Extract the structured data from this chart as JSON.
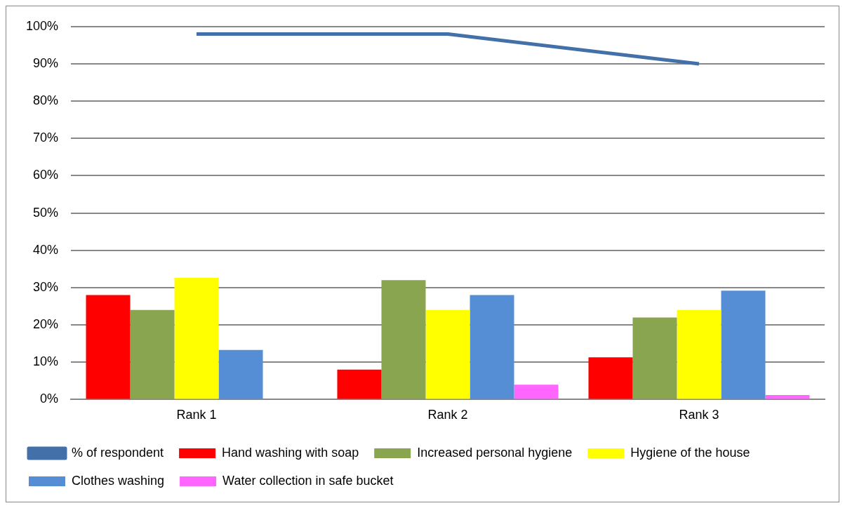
{
  "chart_data": {
    "type": "bar",
    "categories": [
      "Rank 1",
      "Rank 2",
      "Rank 3"
    ],
    "series": [
      {
        "name": "Hand washing with soap",
        "color": "#ff0000",
        "values": [
          28,
          8,
          11.3
        ]
      },
      {
        "name": "Increased personal hygiene",
        "color": "#8aa54f",
        "values": [
          24,
          32,
          22
        ]
      },
      {
        "name": "Hygiene of the house",
        "color": "#ffff00",
        "values": [
          32.6,
          24,
          24
        ]
      },
      {
        "name": "Clothes washing",
        "color": "#558ed5",
        "values": [
          13.3,
          28,
          29.2
        ]
      },
      {
        "name": "Water collection in safe bucket",
        "color": "#ff66ff",
        "values": [
          null,
          4,
          1.2
        ]
      },
      {
        "name": "% of respondent",
        "type": "line",
        "color": "#4470aa",
        "values": [
          98,
          98,
          90
        ]
      }
    ],
    "ylim": [
      0,
      100
    ],
    "yticks": [
      {
        "value": 0,
        "label": "0%"
      },
      {
        "value": 10,
        "label": "10%"
      },
      {
        "value": 20,
        "label": "20%"
      },
      {
        "value": 30,
        "label": "30%"
      },
      {
        "value": 40,
        "label": "40%"
      },
      {
        "value": 50,
        "label": "50%"
      },
      {
        "value": 60,
        "label": "60%"
      },
      {
        "value": 70,
        "label": "70%"
      },
      {
        "value": 80,
        "label": "80%"
      },
      {
        "value": 90,
        "label": "90%"
      },
      {
        "value": 100,
        "label": "100%"
      }
    ],
    "grid": "y",
    "legend": "bottom",
    "marker": "none"
  }
}
